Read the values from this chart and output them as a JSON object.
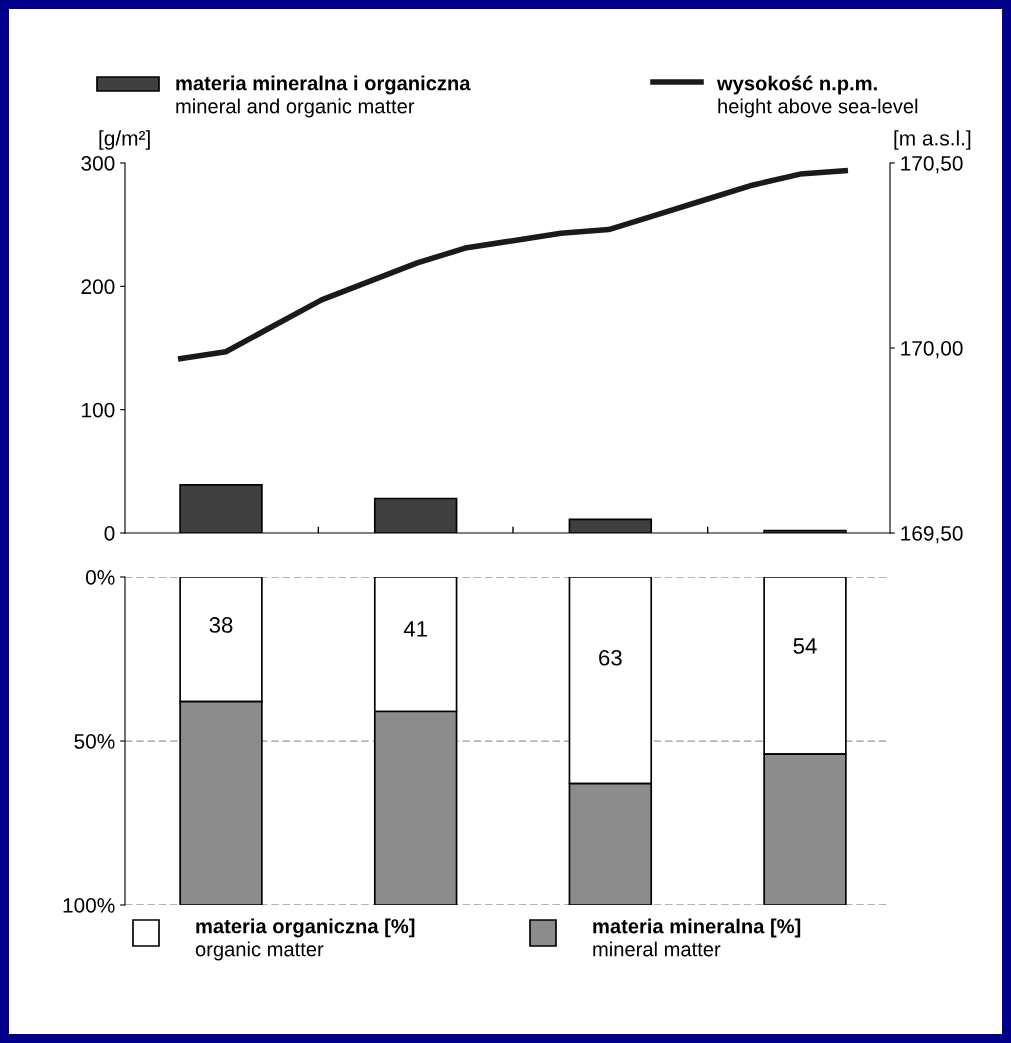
{
  "chart_data": [
    {
      "type": "bar",
      "categories": [
        null,
        null,
        null,
        null
      ],
      "ylabel": "[g/m²]",
      "ylim": [
        0,
        300
      ],
      "yticks": [
        0,
        100,
        200,
        300
      ],
      "legend": "top left",
      "series": [
        {
          "name": "materia mineralna i organiczna\nmineral and organic matter",
          "color": "#404040",
          "values": [
            39,
            28,
            11,
            2
          ]
        }
      ]
    },
    {
      "type": "line",
      "categories": [
        null,
        null,
        null,
        null,
        null,
        null,
        null,
        null,
        null,
        null,
        null,
        null,
        null,
        null,
        null
      ],
      "ylabel": "[m a.s.l.]",
      "ylim": [
        169.5,
        170.5
      ],
      "yticks": [
        {
          "value": 169.5,
          "label": "169,50"
        },
        {
          "value": 170.0,
          "label": "170,00"
        },
        {
          "value": 170.5,
          "label": "170,50"
        }
      ],
      "legend": "top right",
      "series": [
        {
          "name": "wysokość n.p.m.\nheight above sea-level",
          "color": "#1a1a1a",
          "values": [
            169.97,
            169.99,
            170.06,
            170.13,
            170.18,
            170.23,
            170.27,
            170.29,
            170.31,
            170.32,
            170.36,
            170.4,
            170.44,
            170.47,
            170.48
          ]
        }
      ]
    },
    {
      "type": "bar",
      "stacked": true,
      "categories": [
        null,
        null,
        null,
        null
      ],
      "ylim": [
        100,
        0
      ],
      "yticks": [
        {
          "value": 0,
          "label": "0%"
        },
        {
          "value": 50,
          "label": "50%"
        },
        {
          "value": 100,
          "label": "100%"
        }
      ],
      "grid": "y",
      "legend": "bottom",
      "series": [
        {
          "name": "materia organiczna [%]\norganic matter",
          "color": "#ffffff",
          "values": [
            38,
            41,
            63,
            54
          ],
          "value_labels": [
            "38",
            "41",
            "63",
            "54"
          ]
        },
        {
          "name": "materia mineralna [%]\nmineral matter",
          "color": "#8c8c8c",
          "values": [
            62,
            59,
            37,
            46
          ]
        }
      ]
    }
  ]
}
